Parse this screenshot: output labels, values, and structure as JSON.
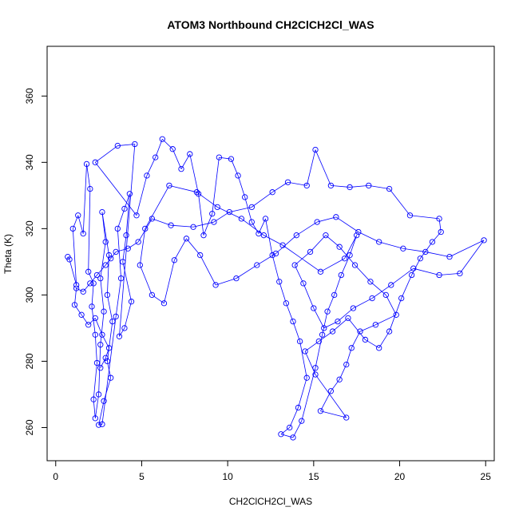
{
  "chart_data": {
    "type": "scatter",
    "title": "ATOM3 Northbound CH2ClCH2Cl_WAS",
    "xlabel": "CH2ClCH2Cl_WAS",
    "ylabel": "Theta (K)",
    "xlim": [
      -0.5,
      25.5
    ],
    "ylim": [
      250,
      375
    ],
    "xticks": [
      0,
      5,
      10,
      15,
      20,
      25
    ],
    "yticks": [
      260,
      280,
      300,
      320,
      340,
      360
    ],
    "grid": false,
    "legend": "none",
    "series_color": "#0000ff",
    "marker": "open-circle",
    "connected": true,
    "series": [
      {
        "values": [
          [
            0.7,
            311.5
          ],
          [
            0.8,
            310.7
          ],
          [
            1.2,
            303.0
          ],
          [
            1.0,
            320.0
          ],
          [
            1.3,
            324.0
          ],
          [
            1.6,
            318.5
          ],
          [
            1.8,
            339.5
          ],
          [
            2.0,
            332.0
          ],
          [
            1.9,
            307.0
          ],
          [
            2.2,
            303.5
          ],
          [
            2.1,
            296.5
          ],
          [
            2.3,
            288.0
          ],
          [
            2.4,
            279.5
          ],
          [
            2.2,
            268.5
          ],
          [
            2.3,
            262.8
          ],
          [
            2.5,
            270.0
          ],
          [
            2.6,
            285.0
          ],
          [
            2.8,
            295.0
          ],
          [
            2.6,
            305.0
          ],
          [
            2.9,
            316.0
          ],
          [
            2.7,
            325.0
          ],
          [
            3.1,
            312.0
          ],
          [
            3.0,
            300.0
          ],
          [
            3.3,
            292.0
          ],
          [
            3.0,
            280.0
          ],
          [
            3.2,
            275.0
          ],
          [
            2.8,
            268.0
          ],
          [
            2.5,
            260.8
          ],
          [
            2.7,
            261.0
          ],
          [
            3.5,
            293.5
          ],
          [
            3.8,
            305.0
          ],
          [
            3.6,
            320.0
          ],
          [
            4.0,
            326.0
          ],
          [
            4.3,
            330.5
          ],
          [
            4.1,
            318.0
          ],
          [
            3.9,
            310.0
          ],
          [
            4.4,
            298.0
          ],
          [
            4.0,
            290.0
          ],
          [
            3.7,
            287.5
          ],
          [
            4.6,
            345.5
          ],
          [
            3.6,
            345.0
          ],
          [
            2.3,
            340.0
          ],
          [
            4.7,
            324.0
          ],
          [
            5.3,
            336.0
          ],
          [
            5.8,
            341.5
          ],
          [
            6.2,
            347.0
          ],
          [
            6.8,
            344.0
          ],
          [
            7.3,
            338.0
          ],
          [
            7.8,
            342.5
          ],
          [
            8.3,
            330.5
          ],
          [
            8.6,
            318.0
          ],
          [
            9.1,
            324.5
          ],
          [
            9.5,
            341.5
          ],
          [
            10.2,
            341.0
          ],
          [
            10.6,
            336.0
          ],
          [
            11.0,
            329.5
          ],
          [
            11.4,
            322.0
          ],
          [
            11.8,
            318.5
          ],
          [
            12.2,
            323.0
          ],
          [
            12.6,
            312.0
          ],
          [
            13.0,
            304.0
          ],
          [
            13.4,
            297.5
          ],
          [
            13.8,
            292.0
          ],
          [
            14.2,
            286.0
          ],
          [
            14.6,
            275.0
          ],
          [
            14.1,
            266.0
          ],
          [
            13.6,
            260.0
          ],
          [
            13.1,
            258.0
          ],
          [
            13.8,
            257.0
          ],
          [
            14.3,
            262.0
          ],
          [
            15.1,
            278.0
          ],
          [
            15.5,
            288.0
          ],
          [
            15.8,
            295.0
          ],
          [
            16.2,
            300.0
          ],
          [
            16.6,
            306.0
          ],
          [
            17.1,
            312.0
          ],
          [
            17.5,
            318.0
          ],
          [
            16.8,
            311.0
          ],
          [
            15.4,
            307.0
          ],
          [
            13.2,
            315.0
          ],
          [
            12.1,
            318.0
          ],
          [
            10.8,
            323.0
          ],
          [
            9.4,
            326.5
          ],
          [
            8.2,
            331.0
          ],
          [
            6.6,
            333.0
          ],
          [
            5.2,
            320.0
          ],
          [
            4.9,
            309.0
          ],
          [
            5.6,
            300.0
          ],
          [
            6.3,
            297.5
          ],
          [
            6.9,
            310.5
          ],
          [
            7.6,
            317.0
          ],
          [
            8.4,
            312.0
          ],
          [
            9.3,
            303.0
          ],
          [
            10.5,
            305.0
          ],
          [
            11.7,
            309.0
          ],
          [
            12.8,
            312.5
          ],
          [
            14.0,
            318.0
          ],
          [
            15.2,
            322.0
          ],
          [
            16.3,
            323.5
          ],
          [
            17.6,
            319.0
          ],
          [
            18.8,
            316.0
          ],
          [
            20.2,
            314.0
          ],
          [
            21.5,
            313.0
          ],
          [
            22.9,
            311.5
          ],
          [
            24.9,
            316.5
          ],
          [
            23.5,
            306.5
          ],
          [
            22.3,
            306.0
          ],
          [
            20.8,
            308.0
          ],
          [
            19.5,
            303.0
          ],
          [
            18.4,
            299.0
          ],
          [
            17.3,
            296.0
          ],
          [
            16.4,
            292.0
          ],
          [
            15.6,
            290.0
          ],
          [
            15.0,
            296.0
          ],
          [
            14.4,
            303.5
          ],
          [
            13.9,
            309.0
          ],
          [
            14.8,
            313.0
          ],
          [
            15.7,
            318.0
          ],
          [
            16.5,
            314.5
          ],
          [
            17.4,
            309.0
          ],
          [
            18.3,
            304.0
          ],
          [
            19.2,
            300.0
          ],
          [
            19.8,
            294.0
          ],
          [
            18.6,
            291.0
          ],
          [
            17.7,
            289.0
          ],
          [
            17.2,
            284.0
          ],
          [
            16.9,
            279.0
          ],
          [
            16.5,
            274.5
          ],
          [
            16.0,
            271.0
          ],
          [
            15.4,
            265.0
          ],
          [
            16.9,
            263.0
          ],
          [
            15.1,
            276.0
          ],
          [
            14.5,
            283.0
          ],
          [
            15.3,
            286.0
          ],
          [
            16.1,
            289.0
          ],
          [
            17.0,
            293.0
          ],
          [
            18.0,
            286.5
          ],
          [
            18.8,
            284.0
          ],
          [
            19.4,
            289.0
          ],
          [
            20.1,
            299.0
          ],
          [
            20.7,
            306.0
          ],
          [
            21.2,
            311.0
          ],
          [
            21.9,
            316.0
          ],
          [
            22.4,
            319.0
          ],
          [
            22.3,
            323.0
          ],
          [
            20.6,
            324.0
          ],
          [
            19.4,
            332.0
          ],
          [
            18.2,
            333.0
          ],
          [
            17.1,
            332.5
          ],
          [
            16.0,
            333.0
          ],
          [
            15.1,
            343.8
          ],
          [
            14.6,
            333.0
          ],
          [
            13.5,
            334.0
          ],
          [
            12.6,
            331.0
          ],
          [
            11.4,
            326.5
          ],
          [
            10.1,
            325.0
          ],
          [
            9.2,
            322.0
          ],
          [
            8.0,
            320.5
          ],
          [
            6.7,
            321.0
          ],
          [
            5.6,
            323.0
          ],
          [
            4.8,
            316.0
          ],
          [
            4.2,
            314.0
          ],
          [
            3.5,
            313.0
          ],
          [
            3.2,
            311.0
          ],
          [
            2.9,
            309.0
          ],
          [
            2.4,
            306.0
          ],
          [
            2.0,
            303.5
          ],
          [
            1.6,
            301.0
          ],
          [
            1.2,
            302.0
          ],
          [
            1.1,
            297.0
          ],
          [
            1.5,
            294.0
          ],
          [
            1.9,
            291.0
          ],
          [
            2.3,
            293.0
          ],
          [
            2.7,
            288.0
          ],
          [
            3.1,
            284.0
          ],
          [
            2.9,
            281.0
          ],
          [
            2.6,
            278.0
          ]
        ]
      }
    ]
  }
}
